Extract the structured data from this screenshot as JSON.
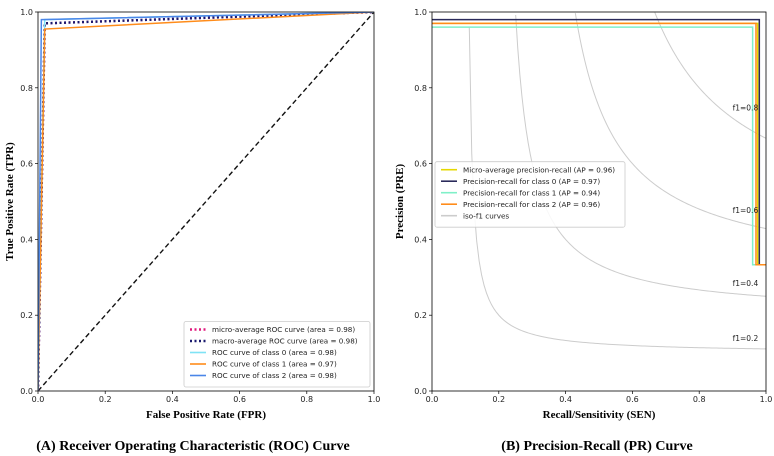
{
  "chart_data": [
    {
      "type": "line",
      "id": "roc",
      "caption": "(A) Receiver Operating Characteristic (ROC) Curve",
      "xlabel": "False Positive Rate (FPR)",
      "ylabel": "True Positive Rate (TPR)",
      "xlim": [
        0,
        1
      ],
      "ylim": [
        0,
        1
      ],
      "xticks": [
        "0.0",
        "0.2",
        "0.4",
        "0.6",
        "0.8",
        "1.0"
      ],
      "yticks": [
        "0.0",
        "0.2",
        "0.4",
        "0.6",
        "0.8",
        "1.0"
      ],
      "legend_position": "bottom-right",
      "series": [
        {
          "name": "micro-average ROC curve (area = 0.98)",
          "color": "#e0197d",
          "dash": "dot",
          "x": [
            0,
            0.02,
            1
          ],
          "y": [
            0,
            0.97,
            1
          ]
        },
        {
          "name": "macro-average ROC curve (area = 0.98)",
          "color": "#1a1a6e",
          "dash": "dot",
          "x": [
            0,
            0.02,
            1
          ],
          "y": [
            0,
            0.97,
            1
          ]
        },
        {
          "name": "ROC curve of class 0 (area = 0.98)",
          "color": "#7fe3f5",
          "dash": "solid",
          "x": [
            0,
            0.02,
            1
          ],
          "y": [
            0,
            0.98,
            1
          ]
        },
        {
          "name": "ROC curve of class 1 (area = 0.97)",
          "color": "#ff8c1a",
          "dash": "solid",
          "x": [
            0,
            0.02,
            1
          ],
          "y": [
            0,
            0.955,
            1
          ]
        },
        {
          "name": "ROC curve of class 2 (area = 0.98)",
          "color": "#4a86e8",
          "dash": "solid",
          "x": [
            0,
            0.01,
            1
          ],
          "y": [
            0,
            0.98,
            1
          ]
        }
      ],
      "diagonal": {
        "x": [
          0,
          1
        ],
        "y": [
          0,
          1
        ],
        "color": "#111111",
        "dash": "dash"
      }
    },
    {
      "type": "line",
      "id": "pr",
      "caption": "(B) Precision-Recall (PR) Curve",
      "xlabel": "Recall/Sensitivity (SEN)",
      "ylabel": "Precision (PRE)",
      "xlim": [
        0,
        1
      ],
      "ylim": [
        0,
        1
      ],
      "xticks": [
        "0.0",
        "0.2",
        "0.4",
        "0.6",
        "0.8",
        "1.0"
      ],
      "yticks": [
        "0.0",
        "0.2",
        "0.4",
        "0.6",
        "0.8",
        "1.0"
      ],
      "legend_position": "center-left",
      "series": [
        {
          "name": "Micro-average precision-recall (AP = 0.96)",
          "color": "#e6d800",
          "x": [
            0,
            0.975,
            0.975,
            1
          ],
          "y": [
            0.97,
            0.97,
            0.333,
            0.333
          ]
        },
        {
          "name": "Precision-recall for class 0 (AP = 0.97)",
          "color": "#2a2a5a",
          "x": [
            0,
            0.98,
            0.98,
            1
          ],
          "y": [
            0.98,
            0.98,
            0.333,
            0.333
          ]
        },
        {
          "name": "Precision-recall for class 1 (AP = 0.94)",
          "color": "#7ff0c8",
          "x": [
            0,
            0.96,
            0.96,
            1
          ],
          "y": [
            0.96,
            0.96,
            0.333,
            0.333
          ]
        },
        {
          "name": "Precision-recall for class 2 (AP = 0.96)",
          "color": "#ff8c1a",
          "x": [
            0,
            0.97,
            0.97,
            1
          ],
          "y": [
            0.97,
            0.97,
            0.333,
            0.333
          ]
        }
      ],
      "iso_f1": {
        "name": "iso-f1 curves",
        "color": "#cccccc",
        "values": [
          0.2,
          0.4,
          0.6,
          0.8
        ],
        "labels": [
          "f1=0.2",
          "f1=0.4",
          "f1=0.6",
          "f1=0.8"
        ]
      }
    }
  ]
}
